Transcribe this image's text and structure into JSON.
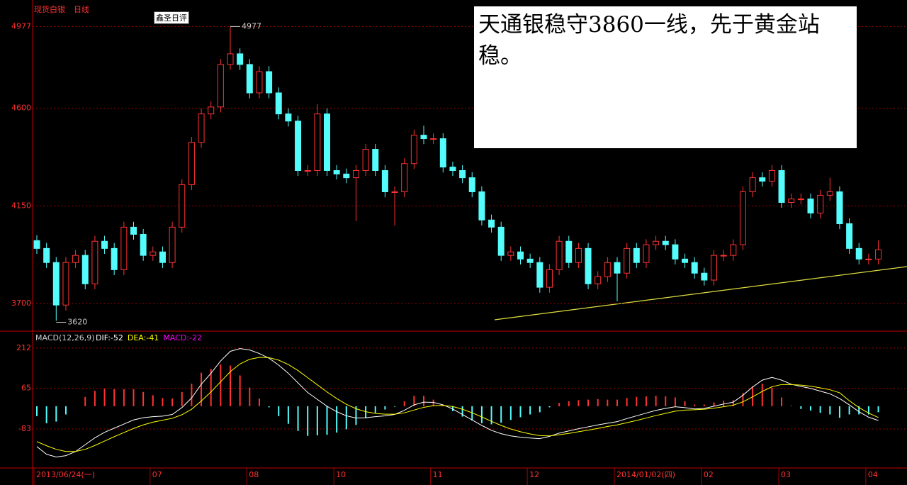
{
  "tooltip": "鑫圣日评",
  "chart_data": [
    {
      "type": "candlestick",
      "title": "现货白银",
      "subtitle": "日线",
      "annotation": "天通银稳守3860一线，先于黄金站稳。",
      "open": [
        3990,
        3954,
        3889,
        3693,
        3889,
        3922,
        3791,
        3987,
        3954,
        3856,
        4052,
        4019,
        3922,
        3938,
        3889,
        4052,
        4248,
        4443,
        4574,
        4606,
        4802,
        4851,
        4802,
        4671,
        4769,
        4671,
        4574,
        4541,
        4313,
        4313,
        4574,
        4313,
        4297,
        4280,
        4313,
        4411,
        4313,
        4215,
        4215,
        4345,
        4476,
        4460,
        4460,
        4329,
        4313,
        4280,
        4215,
        4085,
        4052,
        3922,
        3938,
        3905,
        3889,
        3775,
        3856,
        3987,
        3889,
        3954,
        3791,
        3824,
        3889,
        3840,
        3954,
        3889,
        3971,
        3987,
        3971,
        3905,
        3889,
        3840,
        3808,
        3922,
        3922,
        3971,
        4215,
        4280,
        4264,
        4313,
        4166,
        4182,
        4182,
        4117,
        4199,
        4215,
        4068,
        3954,
        3905,
        3905
      ],
      "high": [
        4015,
        3979,
        3914,
        3914,
        3947,
        3947,
        4012,
        4012,
        3979,
        4077,
        4077,
        4044,
        3963,
        3963,
        4077,
        4273,
        4468,
        4599,
        4631,
        4827,
        4977,
        4876,
        4827,
        4794,
        4794,
        4696,
        4599,
        4566,
        4338,
        4620,
        4599,
        4338,
        4322,
        4338,
        4436,
        4436,
        4338,
        4240,
        4370,
        4501,
        4520,
        4485,
        4485,
        4354,
        4338,
        4305,
        4240,
        4110,
        4077,
        3963,
        3963,
        3930,
        3914,
        3881,
        4012,
        4012,
        3979,
        3979,
        3849,
        3914,
        3914,
        3979,
        3979,
        3996,
        4012,
        4012,
        3996,
        3930,
        3914,
        3865,
        3947,
        3947,
        3996,
        4240,
        4305,
        4305,
        4338,
        4338,
        4207,
        4207,
        4207,
        4224,
        4280,
        4240,
        4093,
        3979,
        3930,
        3990
      ],
      "low": [
        3929,
        3864,
        3620,
        3668,
        3864,
        3766,
        3766,
        3929,
        3831,
        3831,
        3994,
        3897,
        3897,
        3864,
        3864,
        4027,
        4223,
        4418,
        4549,
        4581,
        4777,
        4777,
        4646,
        4646,
        4646,
        4549,
        4516,
        4288,
        4288,
        4288,
        4288,
        4272,
        4255,
        4080,
        4288,
        4288,
        4190,
        4060,
        4190,
        4320,
        4435,
        4435,
        4304,
        4288,
        4255,
        4190,
        4060,
        4027,
        3897,
        3897,
        3880,
        3864,
        3750,
        3750,
        3831,
        3864,
        3864,
        3766,
        3766,
        3799,
        3710,
        3815,
        3864,
        3864,
        3946,
        3946,
        3880,
        3864,
        3815,
        3783,
        3783,
        3897,
        3897,
        3946,
        4190,
        4239,
        4239,
        4141,
        4141,
        4157,
        4092,
        4092,
        4174,
        4043,
        3929,
        3880,
        3880,
        3880
      ],
      "close": [
        3954,
        3889,
        3693,
        3889,
        3922,
        3791,
        3987,
        3954,
        3856,
        4052,
        4019,
        3922,
        3938,
        3889,
        4052,
        4248,
        4443,
        4574,
        4606,
        4802,
        4851,
        4802,
        4671,
        4769,
        4671,
        4574,
        4541,
        4313,
        4313,
        4574,
        4313,
        4297,
        4280,
        4313,
        4411,
        4313,
        4215,
        4215,
        4345,
        4476,
        4460,
        4460,
        4329,
        4313,
        4280,
        4215,
        4085,
        4052,
        3922,
        3938,
        3905,
        3889,
        3775,
        3856,
        3987,
        3889,
        3954,
        3791,
        3824,
        3889,
        3840,
        3954,
        3889,
        3971,
        3987,
        3971,
        3905,
        3889,
        3840,
        3808,
        3922,
        3922,
        3971,
        4215,
        4280,
        4264,
        4313,
        4166,
        4182,
        4182,
        4117,
        4199,
        4215,
        4068,
        3954,
        3905,
        3905,
        3948
      ],
      "up_color": "#ff3232",
      "down_color": "#54fcfc",
      "ylim": [
        3576,
        5073
      ],
      "yticks": [
        3700,
        4150,
        4600,
        4977
      ],
      "grid": true,
      "xticks": [
        {
          "value": 0,
          "label": "2013/06/24(一)"
        },
        {
          "value": 12,
          "label": "07"
        },
        {
          "value": 22,
          "label": "08"
        },
        {
          "value": 31,
          "label": "10"
        },
        {
          "value": 41,
          "label": "11"
        },
        {
          "value": 51,
          "label": "12"
        },
        {
          "value": 60,
          "label": "2014/01/02(四)"
        },
        {
          "value": 69,
          "label": "02"
        },
        {
          "value": 77,
          "label": "03"
        },
        {
          "value": 86,
          "label": "04"
        }
      ]
    },
    {
      "type": "macd",
      "title": "MACD(12,26,9)",
      "ylim": [
        -225,
        271
      ],
      "yticks": [
        -83,
        65,
        212
      ],
      "grid": true,
      "series": [
        {
          "name": "DIF:",
          "color": "#ffffff",
          "values": [
            -147,
            -175,
            -185,
            -180,
            -165,
            -140,
            -115,
            -95,
            -80,
            -65,
            -50,
            -42,
            -38,
            -36,
            -30,
            -5,
            30,
            80,
            120,
            165,
            200,
            210,
            205,
            192,
            175,
            150,
            120,
            85,
            50,
            25,
            0,
            -20,
            -35,
            -43,
            -42,
            -38,
            -35,
            -30,
            -15,
            5,
            15,
            14,
            5,
            -10,
            -30,
            -50,
            -70,
            -88,
            -100,
            -108,
            -113,
            -116,
            -118,
            -110,
            -98,
            -90,
            -82,
            -75,
            -68,
            -62,
            -56,
            -45,
            -35,
            -25,
            -15,
            -8,
            -2,
            -5,
            -10,
            -8,
            0,
            8,
            15,
            40,
            70,
            95,
            105,
            95,
            80,
            72,
            65,
            55,
            45,
            28,
            5,
            -20,
            -40,
            -52
          ]
        },
        {
          "name": "DEA:",
          "color": "#ffff00",
          "values": [
            -129,
            -144,
            -157,
            -165,
            -165,
            -157,
            -143,
            -127,
            -111,
            -96,
            -81,
            -68,
            -58,
            -51,
            -44,
            -31,
            -11,
            19,
            52,
            89,
            126,
            154,
            171,
            178,
            177,
            168,
            152,
            130,
            104,
            78,
            52,
            28,
            7,
            -9,
            -20,
            -26,
            -29,
            -29,
            -24,
            -14,
            -4,
            2,
            3,
            -1,
            -11,
            -24,
            -39,
            -55,
            -70,
            -83,
            -93,
            -101,
            -107,
            -108,
            -104,
            -99,
            -93,
            -87,
            -81,
            -74,
            -68,
            -60,
            -52,
            -43,
            -34,
            -26,
            -18,
            -14,
            -13,
            -11,
            -7,
            -2,
            4,
            16,
            34,
            54,
            71,
            79,
            79,
            77,
            73,
            67,
            60,
            49,
            20,
            -5,
            -25,
            -41
          ]
        },
        {
          "name": "MACD:",
          "color": "#ff00ff",
          "up_color": "#ff3232",
          "down_color": "#54fcfc",
          "values": [
            -36,
            -62,
            -56,
            -30,
            0,
            34,
            56,
            64,
            62,
            62,
            62,
            52,
            40,
            30,
            28,
            52,
            82,
            122,
            136,
            152,
            148,
            112,
            68,
            28,
            -4,
            -36,
            -64,
            -90,
            -108,
            -106,
            -104,
            -96,
            -84,
            -68,
            -44,
            -24,
            -12,
            -2,
            18,
            38,
            38,
            24,
            4,
            -18,
            -38,
            -52,
            -62,
            -66,
            -60,
            -50,
            -40,
            -30,
            -22,
            -4,
            12,
            18,
            22,
            24,
            26,
            24,
            24,
            30,
            34,
            36,
            38,
            36,
            32,
            18,
            6,
            6,
            14,
            20,
            22,
            48,
            72,
            82,
            68,
            32,
            2,
            -10,
            -16,
            -24,
            -30,
            -42,
            -30,
            -30,
            -30,
            -22
          ]
        }
      ]
    }
  ]
}
